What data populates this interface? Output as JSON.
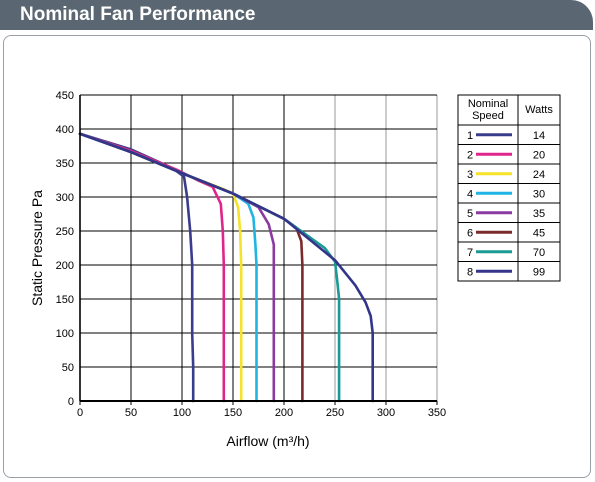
{
  "header": {
    "title": "Nominal Fan Performance"
  },
  "colors": {
    "header_bg": "#5a6772",
    "grid": "#000000",
    "grid_light": "#9a9a9a"
  },
  "chart_data": {
    "type": "line",
    "title": "",
    "xlabel": "Airflow (m³/h)",
    "ylabel": "Static Pressure Pa",
    "xlim": [
      0,
      350
    ],
    "ylim": [
      0,
      450
    ],
    "xticks": [
      0,
      50,
      100,
      150,
      200,
      250,
      300,
      350
    ],
    "yticks": [
      0,
      50,
      100,
      150,
      200,
      250,
      300,
      350,
      400,
      450
    ],
    "grid": true,
    "legend": {
      "placement": "right",
      "header_speed": "Nominal Speed",
      "header_speed_line1": "Nominal",
      "header_speed_line2": "Speed",
      "header_watts": "Watts"
    },
    "series": [
      {
        "name": "1",
        "watts": "14",
        "color": "#3a3c8c",
        "x": [
          0,
          50,
          90,
          102,
          105,
          108,
          110,
          110,
          110,
          111,
          111
        ],
        "y": [
          393,
          370,
          343,
          330,
          300,
          250,
          200,
          150,
          100,
          50,
          0
        ]
      },
      {
        "name": "2",
        "watts": "20",
        "color": "#e0258a",
        "x": [
          0,
          50,
          95,
          115,
          130,
          138,
          140,
          141,
          141,
          141,
          141
        ],
        "y": [
          393,
          368,
          340,
          325,
          315,
          290,
          250,
          200,
          150,
          100,
          0
        ]
      },
      {
        "name": "3",
        "watts": "24",
        "color": "#f5e22a",
        "x": [
          0,
          50,
          100,
          140,
          150,
          155,
          157,
          158,
          158,
          158
        ],
        "y": [
          393,
          366,
          335,
          312,
          305,
          285,
          250,
          200,
          100,
          0
        ]
      },
      {
        "name": "4",
        "watts": "30",
        "color": "#1fb4e3",
        "x": [
          0,
          50,
          100,
          150,
          165,
          170,
          172,
          173,
          173,
          173
        ],
        "y": [
          393,
          366,
          335,
          305,
          290,
          270,
          230,
          200,
          100,
          0
        ]
      },
      {
        "name": "5",
        "watts": "35",
        "color": "#8b3aa0",
        "x": [
          0,
          50,
          100,
          150,
          175,
          185,
          190,
          190,
          190,
          190
        ],
        "y": [
          393,
          366,
          335,
          305,
          285,
          260,
          230,
          200,
          100,
          0
        ]
      },
      {
        "name": "6",
        "watts": "45",
        "color": "#7a2a2a",
        "x": [
          0,
          50,
          100,
          150,
          200,
          212,
          217,
          218,
          218,
          218
        ],
        "y": [
          393,
          366,
          335,
          305,
          268,
          255,
          235,
          200,
          100,
          0
        ]
      },
      {
        "name": "7",
        "watts": "70",
        "color": "#1a9a94",
        "x": [
          0,
          50,
          100,
          150,
          200,
          240,
          250,
          252,
          254,
          254,
          254
        ],
        "y": [
          393,
          366,
          335,
          305,
          268,
          225,
          205,
          180,
          150,
          100,
          0
        ]
      },
      {
        "name": "8",
        "watts": "99",
        "color": "#34348a",
        "x": [
          0,
          50,
          100,
          150,
          200,
          250,
          270,
          280,
          285,
          287,
          287,
          287
        ],
        "y": [
          393,
          366,
          335,
          305,
          268,
          207,
          170,
          145,
          125,
          100,
          50,
          0
        ]
      }
    ]
  }
}
